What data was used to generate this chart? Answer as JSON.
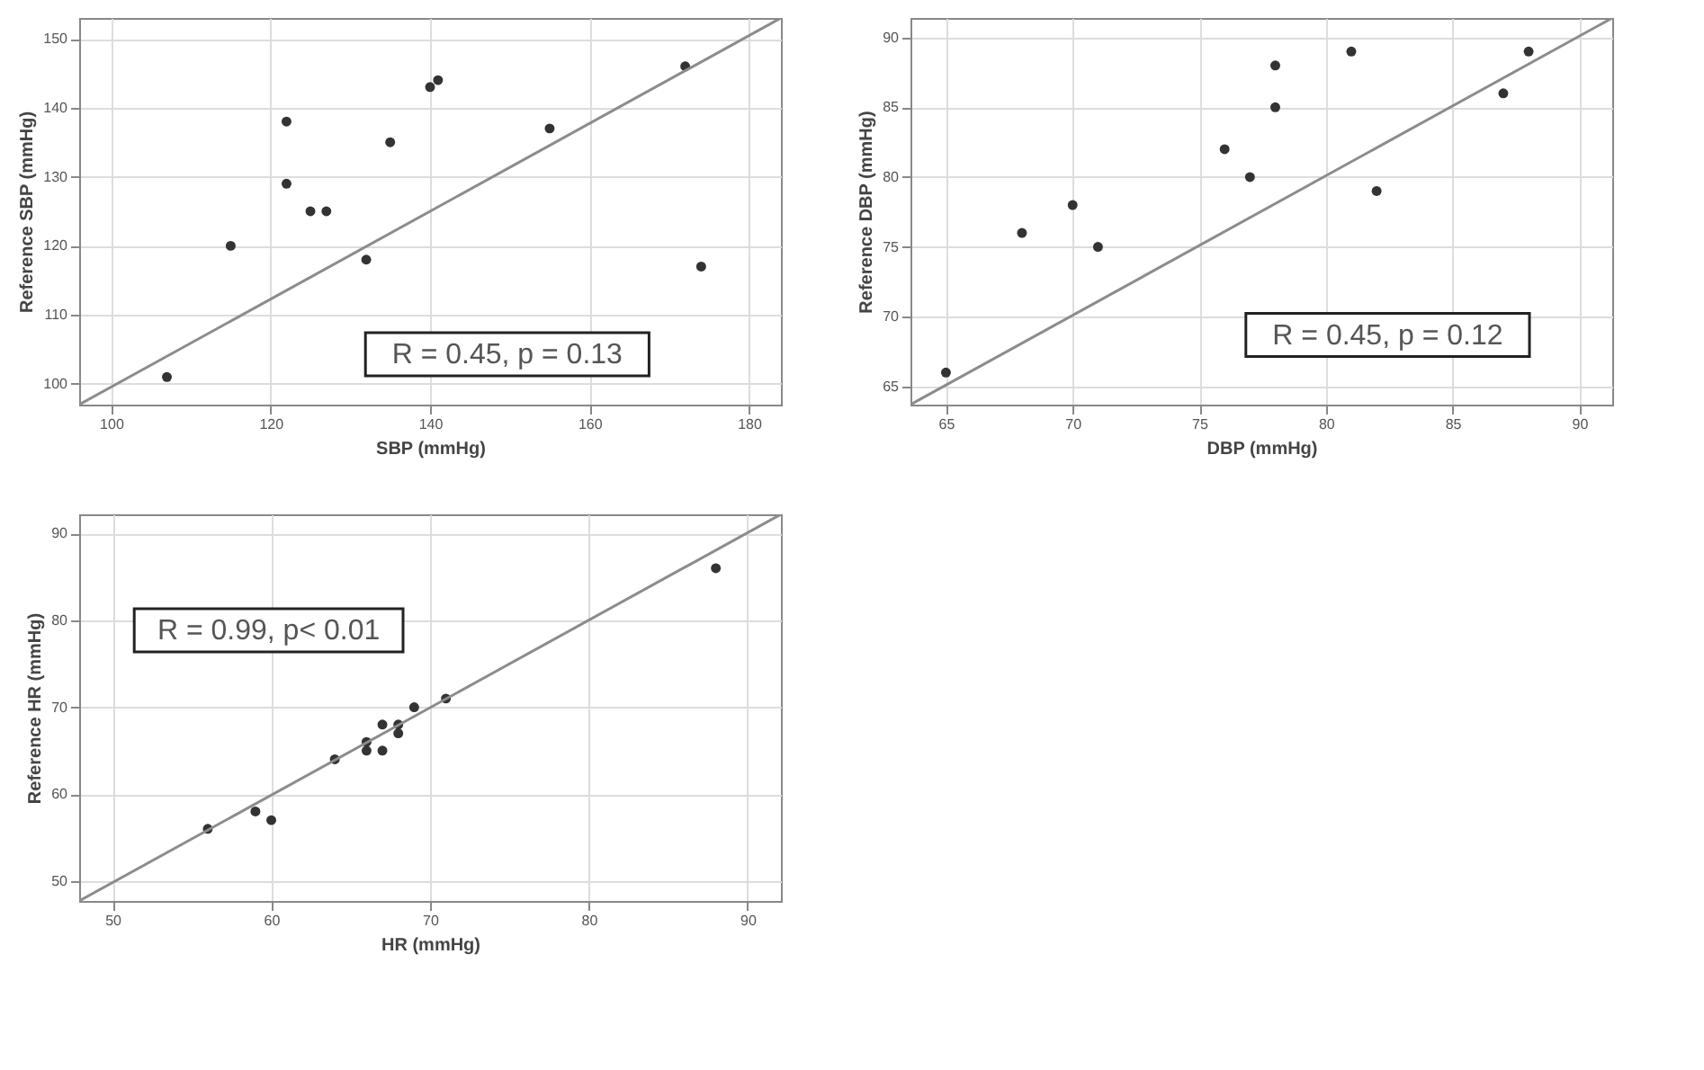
{
  "chart_data": [
    {
      "type": "scatter",
      "xlabel": "SBP (mmHg)",
      "ylabel": "Reference SBP (mmHg)",
      "xlim": [
        96,
        184
      ],
      "ylim": [
        97,
        153
      ],
      "xticks": [
        100,
        120,
        140,
        160,
        180
      ],
      "yticks": [
        100,
        110,
        120,
        130,
        140,
        150
      ],
      "grid": true,
      "annotations": [
        "R = 0.45, p = 0.13"
      ],
      "series": [
        {
          "color": "#333333",
          "marker": "circle",
          "x": [
            107,
            115,
            122,
            122,
            125,
            127,
            132,
            135,
            140,
            141,
            155,
            172,
            174
          ],
          "values": [
            101,
            120,
            138,
            129,
            125,
            125,
            118,
            135,
            143,
            144,
            137,
            146,
            117
          ]
        },
        {
          "type": "line",
          "color": "#8c8c8c",
          "x": [
            96,
            184
          ],
          "values": [
            97,
            153
          ]
        }
      ]
    },
    {
      "type": "scatter",
      "xlabel": "DBP (mmHg)",
      "ylabel": "Reference DBP (mmHg)",
      "xlim": [
        63.6,
        91.3
      ],
      "ylim": [
        63.7,
        91.4
      ],
      "xticks": [
        65,
        70,
        75,
        80,
        85,
        90
      ],
      "yticks": [
        65,
        70,
        75,
        80,
        85,
        90
      ],
      "grid": true,
      "annotations": [
        "R = 0.45, p = 0.12"
      ],
      "series": [
        {
          "color": "#333333",
          "marker": "circle",
          "x": [
            65,
            68,
            70,
            71,
            76,
            77,
            78,
            78,
            81,
            82,
            87,
            88
          ],
          "values": [
            66,
            76,
            78,
            75,
            82,
            80,
            88,
            85,
            89,
            79,
            86,
            89
          ]
        },
        {
          "type": "line",
          "color": "#8c8c8c",
          "x": [
            63.6,
            91.3
          ],
          "values": [
            63.7,
            91.4
          ]
        }
      ]
    },
    {
      "type": "scatter",
      "xlabel": "HR (mmHg)",
      "ylabel": "Reference HR (mmHg)",
      "xlim": [
        47.9,
        92.1
      ],
      "ylim": [
        47.7,
        92.2
      ],
      "xticks": [
        50,
        60,
        70,
        80,
        90
      ],
      "yticks": [
        50,
        60,
        70,
        80,
        90
      ],
      "grid": true,
      "annotations": [
        "R = 0.99, p< 0.01"
      ],
      "series": [
        {
          "color": "#333333",
          "marker": "circle",
          "x": [
            56,
            59,
            60,
            64,
            66,
            66,
            67,
            67,
            68,
            68,
            69,
            71,
            88
          ],
          "values": [
            56,
            58,
            57,
            64,
            66,
            65,
            68,
            65,
            68,
            67,
            70,
            71,
            86
          ]
        },
        {
          "type": "line",
          "color": "#8c8c8c",
          "x": [
            47.9,
            92.1
          ],
          "values": [
            47.7,
            92.2
          ]
        }
      ]
    }
  ]
}
